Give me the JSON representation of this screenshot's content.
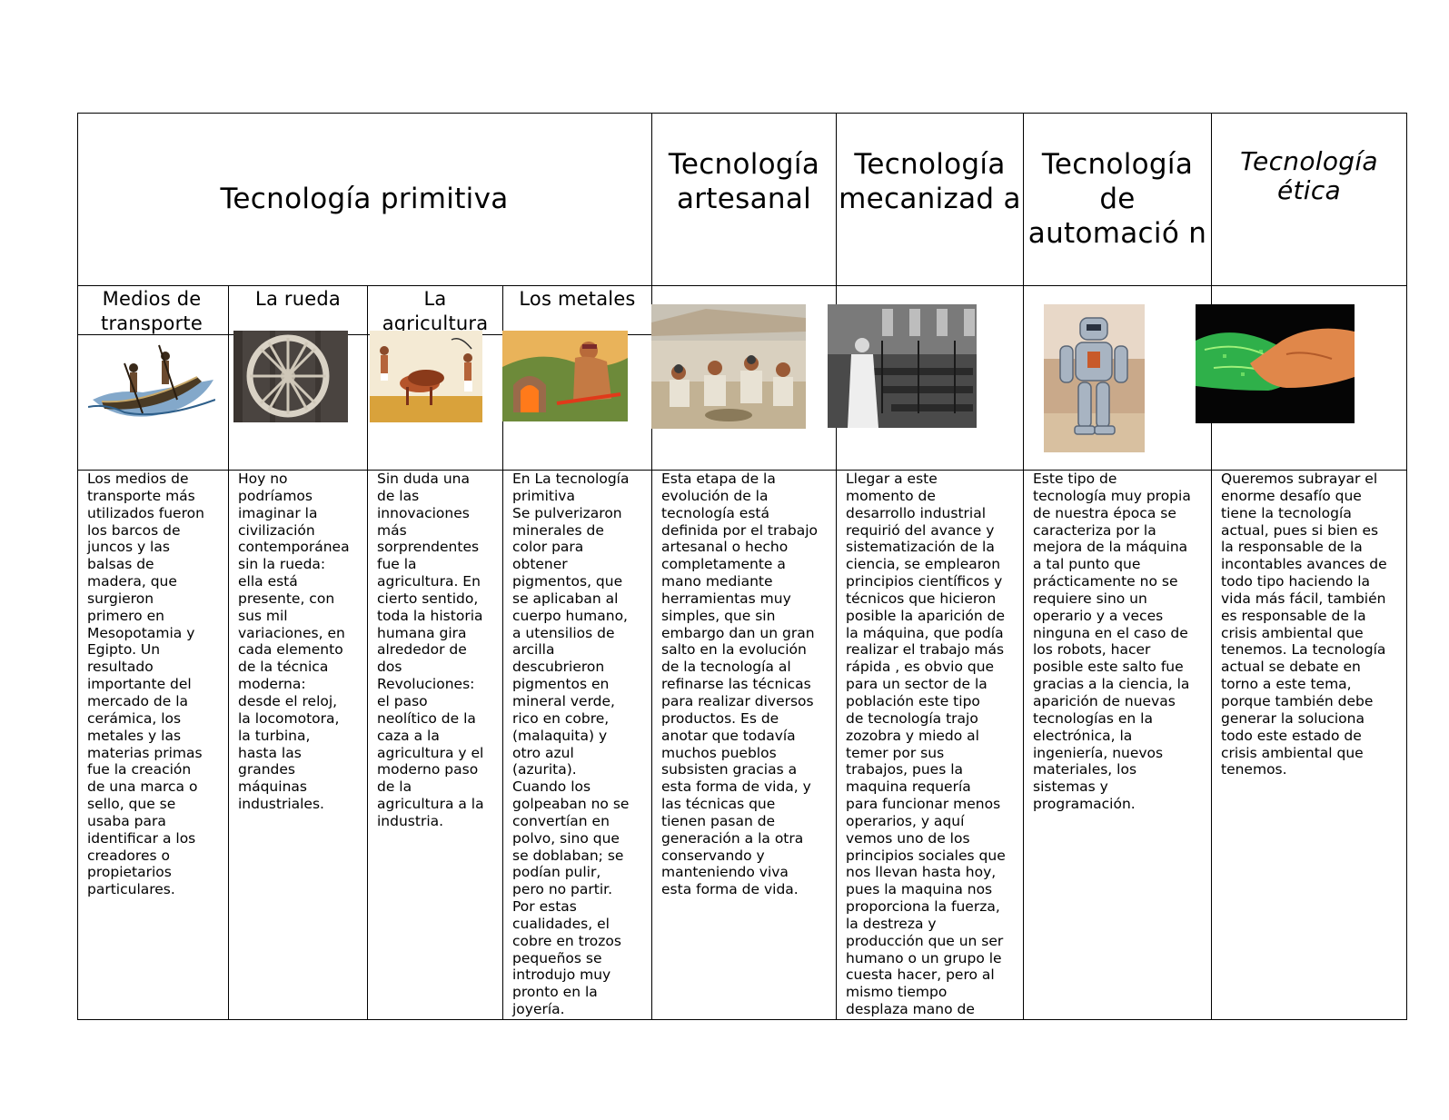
{
  "main_headers": {
    "primitiva": "Tecnología primitiva",
    "artesanal": "Tecnología artesanal",
    "mecanizada": "Tecnología mecanizad a",
    "automacion": "Tecnología de automació n",
    "etica": "Tecnología ética"
  },
  "sub_headers": {
    "transporte": "Medios de transporte",
    "rueda": "La rueda",
    "agricultura": "La agricultura",
    "metales": "Los metales"
  },
  "images": {
    "transporte": "canoe-image",
    "rueda": "wheel-image",
    "agricultura": "egyptian-farming-image",
    "metales": "metalworker-image",
    "artesanal": "artisans-image",
    "mecanizada": "factory-image",
    "automacion": "robot-image",
    "etica": "handshake-image"
  },
  "texts": {
    "transporte": "Los medios de\ntransporte más\nutilizados fueron\nlos barcos de\njuncos y las\nbalsas de\nmadera, que\nsurgieron\nprimero en\nMesopotamia y\nEgipto. Un\nresultado\nimportante del\nmercado de la\ncerámica, los\nmetales y las\nmaterias primas\nfue la creación\nde una marca o\nsello, que se\nusaba para\nidentificar a los\ncreadores o\npropietarios\nparticulares.",
    "rueda": "Hoy no\npodríamos\nimaginar la\ncivilización\ncontemporánea\nsin la rueda:\nella está\npresente, con\nsus mil\nvariaciones, en\ncada elemento\nde la técnica\nmoderna:\ndesde el reloj,\nla locomotora,\nla turbina,\nhasta las\ngrandes\nmáquinas\nindustriales.",
    "agricultura": "Sin duda una\nde las\ninnovaciones\nmás\nsorprendentes\nfue la\nagricultura. En\ncierto sentido,\ntoda la historia\nhumana gira\nalrededor de\ndos\nRevoluciones:\nel paso\nneolítico de la\ncaza a la\nagricultura y el\nmoderno paso\nde la\nagricultura a la\nindustria.",
    "metales": "En La tecnología\nprimitiva\nSe pulverizaron\nminerales de\ncolor para\nobtener\npigmentos, que\nse aplicaban al\ncuerpo humano,\na utensilios de\narcilla\ndescubrieron\npigmentos  en\nmineral verde,\nrico en cobre,\n(malaquita) y\notro azul\n(azurita).\nCuando los\ngolpeaban no se\nconvertían en\npolvo, sino que\nse doblaban; se\npodían pulir,\npero no partir.\nPor estas\ncualidades, el\ncobre en trozos\npequeños se\nintrodujo muy\npronto en la\njoyería.",
    "artesanal": "Esta etapa de la\nevolución de la\ntecnología está\ndefinida por el trabajo\nartesanal o hecho\ncompletamente a\nmano mediante\nherramientas muy\nsimples, que sin\nembargo dan un gran\nsalto en la evolución\nde la tecnología al\nrefinarse las técnicas\npara realizar diversos\nproductos. Es de\nanotar que todavía\nmuchos pueblos\nsubsisten gracias a\nesta forma de vida, y\nlas técnicas que\ntienen pasan de\ngeneración a la otra\nconservando y\nmanteniendo viva\nesta forma de vida.",
    "mecanizada": "Llegar a este\nmomento de\ndesarrollo industrial\nrequirió del avance y\nsistematización de la\nciencia, se emplearon\nprincipios científicos y\ntécnicos que hicieron\nposible la aparición de\nla máquina, que podía\nrealizar el trabajo más\nrápida , es obvio que\npara un sector de la\npoblación este  tipo\nde tecnología trajo\nzozobra y miedo al\ntemer por sus\ntrabajos, pues  la\nmaquina requería\npara funcionar menos\noperarios, y aquí\nvemos uno de los\nprincipios sociales que\nnos llevan hasta hoy,\npues la maquina nos\nproporciona la fuerza,\nla destreza y\nproducción que un ser\nhumano o un grupo le\ncuesta hacer, pero al\nmismo tiempo\ndesplaza mano de",
    "automacion": "Este tipo de\ntecnología muy propia\nde nuestra época se\ncaracteriza por la\nmejora de la máquina\na tal punto que\nprácticamente no se\nrequiere sino un\noperario y a veces\nninguna en el caso de\nlos robots, hacer\nposible este salto fue\ngracias a la ciencia, la\naparición de nuevas\ntecnologías en la\nelectrónica, la\ningeniería, nuevos\nmateriales, los\nsistemas y\nprogramación.",
    "etica": "Queremos subrayar el\nenorme desafío que\ntiene la tecnología\nactual, pues si bien es\nla responsable de la\nincontables avances de\ntodo tipo haciendo la\nvida más fácil, también\nes responsable de la\ncrisis ambiental que\ntenemos. La tecnología\nactual se debate en\ntorno a este tema,\nporque también debe\ngenerar la soluciona\ntodo este estado de\ncrisis ambiental que\ntenemos."
  },
  "colors": {
    "border": "#000000",
    "text": "#000000",
    "background": "#ffffff"
  }
}
